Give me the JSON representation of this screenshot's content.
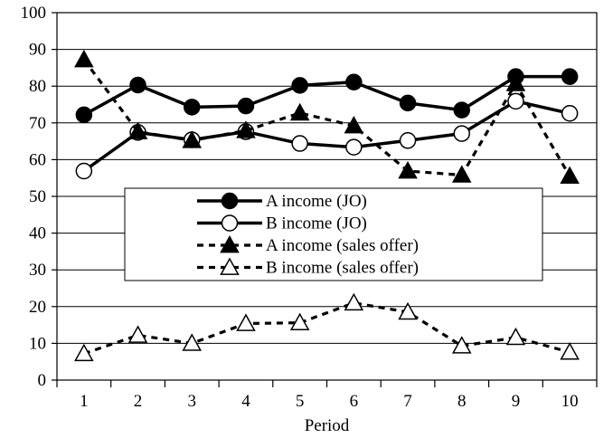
{
  "chart_data": {
    "type": "line",
    "title": "",
    "xlabel": "Period",
    "ylabel": "",
    "x": [
      1,
      2,
      3,
      4,
      5,
      6,
      7,
      8,
      9,
      10
    ],
    "xlim": [
      0.5,
      10.5
    ],
    "ylim": [
      0,
      100
    ],
    "yticks": [
      0,
      10,
      20,
      30,
      40,
      50,
      60,
      70,
      80,
      90,
      100
    ],
    "grid": "horizontal",
    "legend_position": "center",
    "series": [
      {
        "name": "A income (JO)",
        "values": [
          72.2,
          80.3,
          74.3,
          74.6,
          80.2,
          81.1,
          75.4,
          73.5,
          82.6,
          82.6
        ],
        "line": "solid",
        "marker": "filled-circle",
        "color": "#000000"
      },
      {
        "name": "B income (JO)",
        "values": [
          56.9,
          67.4,
          65.4,
          67.6,
          64.4,
          63.4,
          65.2,
          67.1,
          75.9,
          72.6
        ],
        "line": "solid",
        "marker": "open-circle",
        "color": "#000000"
      },
      {
        "name": "A income (sales offer)",
        "values": [
          87.2,
          67.6,
          65.2,
          67.9,
          72.7,
          69.2,
          56.9,
          55.8,
          80.7,
          55.5
        ],
        "line": "dashed",
        "marker": "filled-triangle",
        "color": "#000000"
      },
      {
        "name": "B income (sales offer)",
        "values": [
          7.2,
          12.2,
          10.0,
          15.4,
          15.6,
          21.0,
          18.5,
          9.3,
          11.6,
          7.6
        ],
        "line": "dashed",
        "marker": "open-triangle",
        "color": "#000000"
      }
    ]
  }
}
